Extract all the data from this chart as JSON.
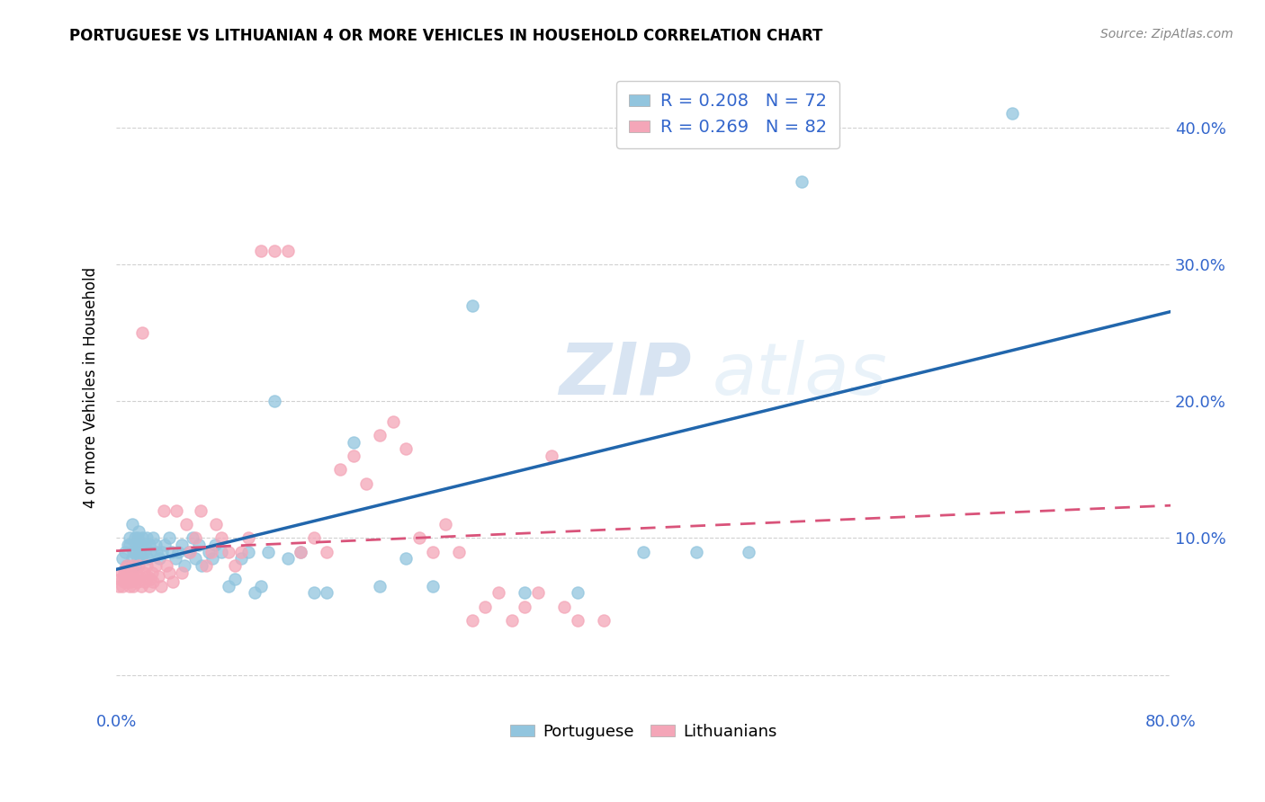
{
  "title": "PORTUGUESE VS LITHUANIAN 4 OR MORE VEHICLES IN HOUSEHOLD CORRELATION CHART",
  "source": "Source: ZipAtlas.com",
  "ylabel": "4 or more Vehicles in Household",
  "ytick_labels": [
    "",
    "10.0%",
    "20.0%",
    "30.0%",
    "40.0%"
  ],
  "ytick_values": [
    0.0,
    0.1,
    0.2,
    0.3,
    0.4
  ],
  "xlim": [
    0.0,
    0.8
  ],
  "ylim": [
    -0.025,
    0.445
  ],
  "legend_label1": "R = 0.208   N = 72",
  "legend_label2": "R = 0.269   N = 82",
  "legend_bottom_label1": "Portuguese",
  "legend_bottom_label2": "Lithuanians",
  "color_portuguese": "#92c5de",
  "color_lithuanian": "#f4a6b8",
  "color_portuguese_line": "#2166ac",
  "color_lithuanian_line": "#d9537a",
  "legend_text_color": "#3366cc",
  "watermark_zip": "ZIP",
  "watermark_atlas": "atlas",
  "portuguese_x": [
    0.005,
    0.007,
    0.008,
    0.009,
    0.01,
    0.01,
    0.012,
    0.012,
    0.013,
    0.014,
    0.014,
    0.015,
    0.015,
    0.016,
    0.016,
    0.017,
    0.018,
    0.018,
    0.019,
    0.02,
    0.02,
    0.021,
    0.022,
    0.023,
    0.024,
    0.025,
    0.026,
    0.028,
    0.03,
    0.031,
    0.033,
    0.035,
    0.037,
    0.04,
    0.042,
    0.045,
    0.047,
    0.05,
    0.052,
    0.055,
    0.058,
    0.06,
    0.063,
    0.065,
    0.07,
    0.073,
    0.075,
    0.08,
    0.085,
    0.09,
    0.095,
    0.1,
    0.105,
    0.11,
    0.115,
    0.12,
    0.13,
    0.14,
    0.15,
    0.16,
    0.18,
    0.2,
    0.22,
    0.24,
    0.27,
    0.31,
    0.35,
    0.4,
    0.44,
    0.48,
    0.52,
    0.68
  ],
  "portuguese_y": [
    0.085,
    0.09,
    0.08,
    0.095,
    0.095,
    0.1,
    0.085,
    0.11,
    0.09,
    0.08,
    0.1,
    0.09,
    0.095,
    0.085,
    0.1,
    0.105,
    0.095,
    0.09,
    0.085,
    0.095,
    0.1,
    0.09,
    0.095,
    0.1,
    0.085,
    0.095,
    0.09,
    0.1,
    0.095,
    0.09,
    0.085,
    0.09,
    0.095,
    0.1,
    0.09,
    0.085,
    0.09,
    0.095,
    0.08,
    0.09,
    0.1,
    0.085,
    0.095,
    0.08,
    0.09,
    0.085,
    0.095,
    0.09,
    0.065,
    0.07,
    0.085,
    0.09,
    0.06,
    0.065,
    0.09,
    0.2,
    0.085,
    0.09,
    0.06,
    0.06,
    0.17,
    0.065,
    0.085,
    0.065,
    0.27,
    0.06,
    0.06,
    0.09,
    0.09,
    0.09,
    0.36,
    0.41
  ],
  "lithuanian_x": [
    0.002,
    0.003,
    0.004,
    0.005,
    0.005,
    0.006,
    0.006,
    0.007,
    0.007,
    0.008,
    0.008,
    0.009,
    0.009,
    0.01,
    0.01,
    0.011,
    0.011,
    0.012,
    0.013,
    0.013,
    0.014,
    0.015,
    0.016,
    0.017,
    0.018,
    0.019,
    0.02,
    0.021,
    0.022,
    0.023,
    0.024,
    0.025,
    0.026,
    0.027,
    0.028,
    0.03,
    0.032,
    0.034,
    0.036,
    0.038,
    0.04,
    0.043,
    0.046,
    0.05,
    0.053,
    0.056,
    0.06,
    0.064,
    0.068,
    0.072,
    0.076,
    0.08,
    0.085,
    0.09,
    0.095,
    0.1,
    0.11,
    0.12,
    0.13,
    0.14,
    0.15,
    0.16,
    0.17,
    0.18,
    0.19,
    0.2,
    0.21,
    0.22,
    0.23,
    0.24,
    0.25,
    0.26,
    0.27,
    0.28,
    0.29,
    0.3,
    0.31,
    0.32,
    0.33,
    0.34,
    0.35,
    0.37
  ],
  "lithuanian_y": [
    0.065,
    0.07,
    0.075,
    0.065,
    0.07,
    0.075,
    0.068,
    0.072,
    0.078,
    0.068,
    0.08,
    0.072,
    0.075,
    0.065,
    0.07,
    0.075,
    0.068,
    0.08,
    0.072,
    0.065,
    0.07,
    0.075,
    0.068,
    0.08,
    0.072,
    0.065,
    0.25,
    0.075,
    0.068,
    0.08,
    0.072,
    0.065,
    0.07,
    0.075,
    0.068,
    0.08,
    0.072,
    0.065,
    0.12,
    0.08,
    0.075,
    0.068,
    0.12,
    0.075,
    0.11,
    0.09,
    0.1,
    0.12,
    0.08,
    0.09,
    0.11,
    0.1,
    0.09,
    0.08,
    0.09,
    0.1,
    0.31,
    0.31,
    0.31,
    0.09,
    0.1,
    0.09,
    0.15,
    0.16,
    0.14,
    0.175,
    0.185,
    0.165,
    0.1,
    0.09,
    0.11,
    0.09,
    0.04,
    0.05,
    0.06,
    0.04,
    0.05,
    0.06,
    0.16,
    0.05,
    0.04,
    0.04
  ]
}
